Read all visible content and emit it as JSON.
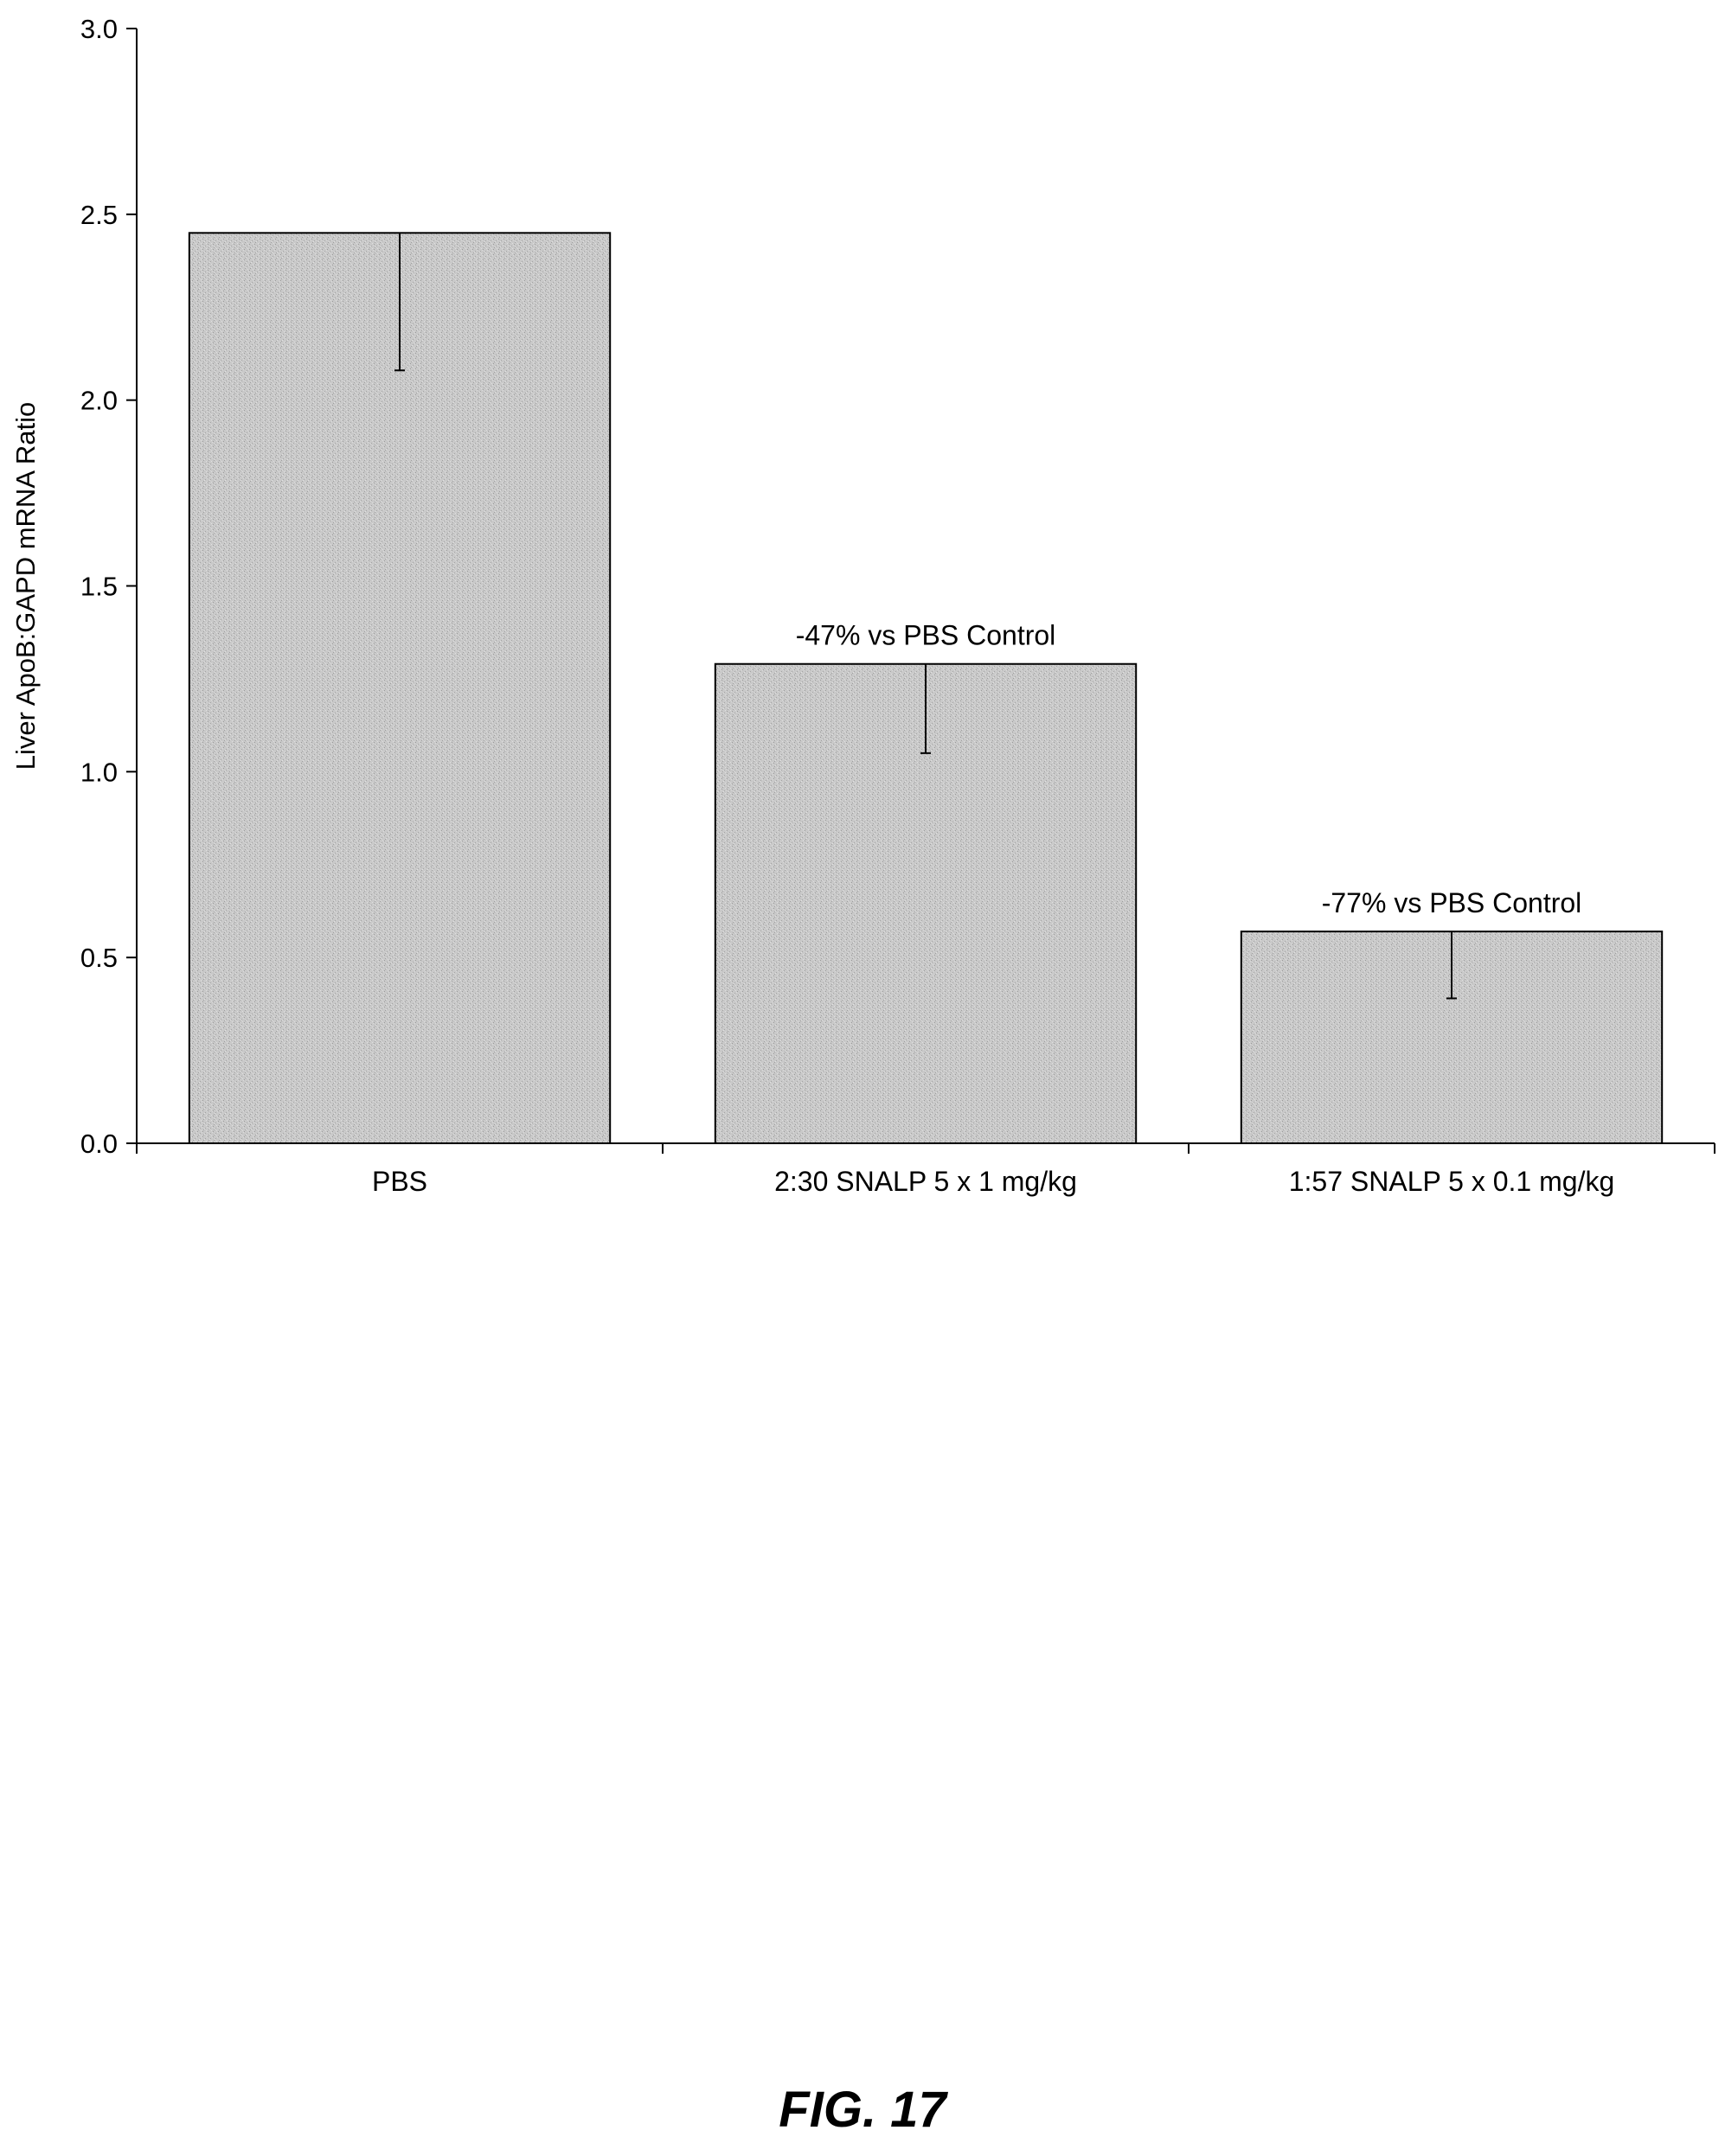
{
  "chart_data": {
    "type": "bar",
    "categories": [
      "PBS",
      "2:30 SNALP 5 x 1 mg/kg",
      "1:57 SNALP 5 x 0.1 mg/kg"
    ],
    "values": [
      2.45,
      1.29,
      0.57
    ],
    "error_lower": [
      2.08,
      1.05,
      0.39
    ],
    "annotations": [
      "",
      "-47% vs PBS Control",
      "-77% vs PBS Control"
    ],
    "title": "",
    "xlabel": "",
    "ylabel": "Liver ApoB:GAPD mRNA Ratio",
    "ylim": [
      0,
      3.0
    ],
    "yticks": [
      "0.0",
      "0.5",
      "1.0",
      "1.5",
      "2.0",
      "2.5",
      "3.0"
    ],
    "ytick_values": [
      0,
      0.5,
      1.0,
      1.5,
      2.0,
      2.5,
      3.0
    ],
    "grid": false,
    "legend": "none",
    "bar_color": "#c8c8c8"
  },
  "figure": {
    "caption": "FIG. 17"
  }
}
